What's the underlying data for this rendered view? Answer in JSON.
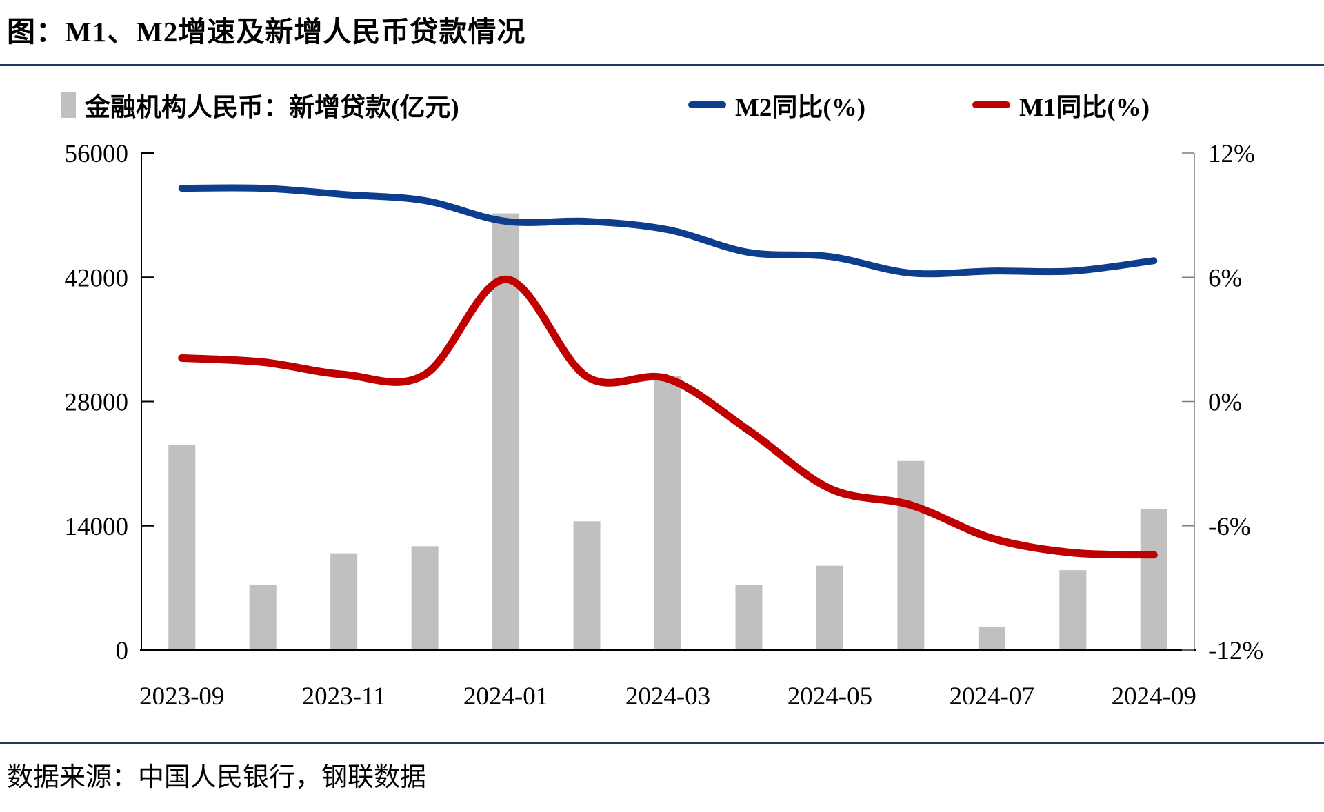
{
  "page": {
    "title": "图：M1、M2增速及新增人民币贷款情况",
    "source": "数据来源：中国人民银行，钢联数据",
    "colors": {
      "bar": "#C0C0C0",
      "m2_line": "#0C3E8D",
      "m1_line": "#C00000",
      "separator": "#1F3864",
      "left_axis": "#000000",
      "right_axis": "#7F7F7F",
      "text": "#000000"
    }
  },
  "chart_data": {
    "type": "bar+line combo",
    "title": "图：M1、M2增速及新增人民币贷款情况",
    "grid": false,
    "legend_position": "top",
    "categories": [
      "2023-09",
      "2023-10",
      "2023-11",
      "2023-12",
      "2024-01",
      "2024-02",
      "2024-03",
      "2024-04",
      "2024-05",
      "2024-06",
      "2024-07",
      "2024-08",
      "2024-09"
    ],
    "series": [
      {
        "name": "金融机构人民币：新增贷款(亿元)",
        "type": "bar",
        "axis": "left",
        "color": "#C0C0C0",
        "values": [
          23100,
          7384,
          10900,
          11700,
          49200,
          14500,
          30900,
          7300,
          9500,
          21300,
          2600,
          9000,
          15900
        ]
      },
      {
        "name": "M2同比(%)",
        "type": "line",
        "axis": "right",
        "color": "#0C3E8D",
        "values": [
          10.3,
          10.3,
          10.0,
          9.7,
          8.7,
          8.7,
          8.3,
          7.2,
          7.0,
          6.2,
          6.3,
          6.3,
          6.8
        ]
      },
      {
        "name": "M1同比(%)",
        "type": "line",
        "axis": "right",
        "color": "#C00000",
        "values": [
          2.1,
          1.9,
          1.3,
          1.3,
          5.9,
          1.2,
          1.1,
          -1.4,
          -4.2,
          -5.0,
          -6.6,
          -7.3,
          -7.4
        ]
      }
    ],
    "left_axis": {
      "min": 0,
      "max": 56000,
      "step": 14000,
      "ticks": [
        {
          "v": 0,
          "label": "0"
        },
        {
          "v": 14000,
          "label": "14000"
        },
        {
          "v": 28000,
          "label": "28000"
        },
        {
          "v": 42000,
          "label": "42000"
        },
        {
          "v": 56000,
          "label": "56000"
        }
      ]
    },
    "right_axis": {
      "min": -12,
      "max": 12,
      "step": 6,
      "ticks": [
        {
          "v": -12,
          "label": "-12%"
        },
        {
          "v": -6,
          "label": "-6%"
        },
        {
          "v": 0,
          "label": "0%"
        },
        {
          "v": 6,
          "label": "6%"
        },
        {
          "v": 12,
          "label": "12%"
        }
      ]
    },
    "x_ticks": [
      {
        "i": 0,
        "label": "2023-09"
      },
      {
        "i": 2,
        "label": "2023-11"
      },
      {
        "i": 4,
        "label": "2024-01"
      },
      {
        "i": 6,
        "label": "2024-03"
      },
      {
        "i": 8,
        "label": "2024-05"
      },
      {
        "i": 10,
        "label": "2024-07"
      },
      {
        "i": 12,
        "label": "2024-09"
      }
    ]
  }
}
